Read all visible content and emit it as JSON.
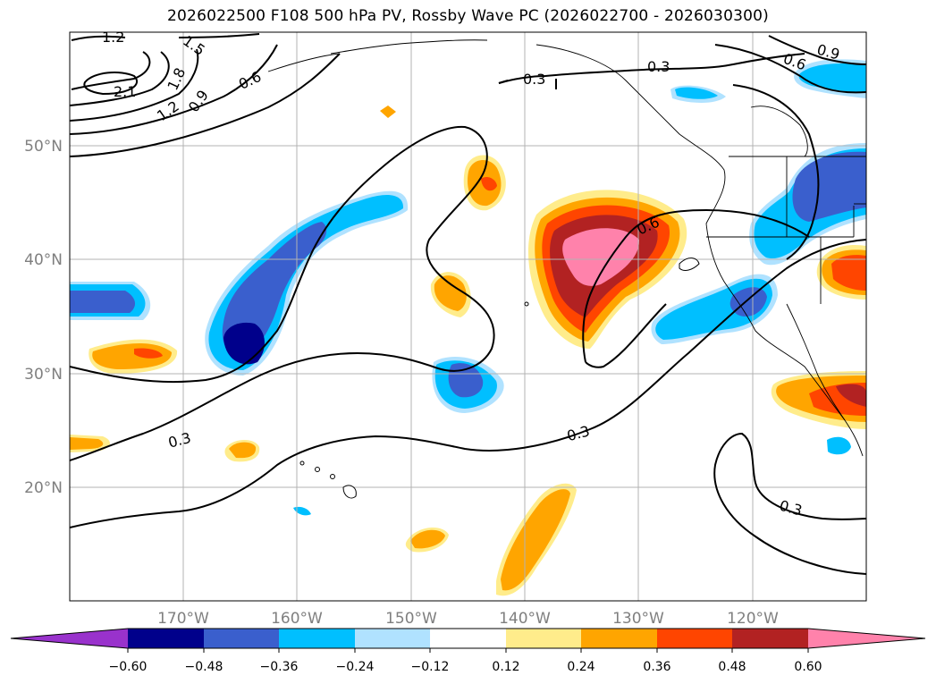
{
  "title": "2026022500 F108 500 hPa PV, Rossby Wave PC (2026022700 - 2026030300)",
  "map": {
    "lon_range": [
      -180,
      -110
    ],
    "lat_range": [
      10,
      60
    ],
    "lat_ticks": [
      "20°N",
      "30°N",
      "40°N",
      "50°N"
    ],
    "lon_ticks": [
      "170°W",
      "160°W",
      "150°W",
      "140°W",
      "130°W",
      "120°W"
    ],
    "grid": true
  },
  "contour_labels": [
    "1.2",
    "1.5",
    "2.1",
    "1.8",
    "1.2",
    "0.9",
    "0.6",
    "0.3",
    "0.3",
    "0.6",
    "0.9",
    "0.6",
    "0.3",
    "0.3",
    "0.3"
  ],
  "colorbar": {
    "ticks": [
      "−0.60",
      "−0.48",
      "−0.36",
      "−0.24",
      "−0.12",
      "0.12",
      "0.24",
      "0.36",
      "0.48",
      "0.60"
    ],
    "colors": [
      "#9932cc",
      "#00008b",
      "#3a5fcd",
      "#00bfff",
      "#b0e2ff",
      "#ffffff",
      "#ffec8b",
      "#ffa500",
      "#ff4500",
      "#b22222",
      "#ff82ab"
    ],
    "extend": "both"
  },
  "colors": {
    "dark_blue": "#00008b",
    "blue": "#3a5fcd",
    "sky": "#00bfff",
    "light_sky": "#b0e2ff",
    "yellow": "#ffec8b",
    "orange": "#ffa500",
    "red_orange": "#ff4500",
    "firebrick": "#b22222",
    "pink": "#ff82ab"
  }
}
